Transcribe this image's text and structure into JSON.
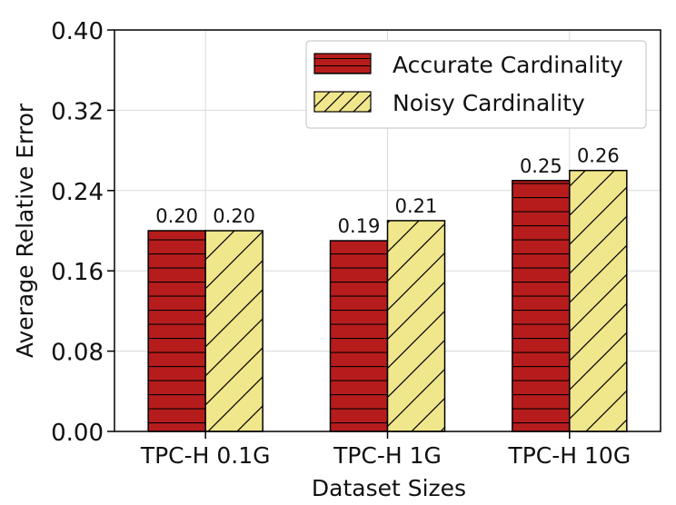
{
  "chart_data": {
    "type": "bar",
    "categories": [
      "TPC-H 0.1G",
      "TPC-H 1G",
      "TPC-H 10G"
    ],
    "series": [
      {
        "name": "Accurate Cardinality",
        "values": [
          0.2,
          0.19,
          0.25
        ],
        "labels": [
          "0.20",
          "0.19",
          "0.25"
        ],
        "color": "#b71c1c",
        "hatch": "horizontal"
      },
      {
        "name": "Noisy Cardinality",
        "values": [
          0.2,
          0.21,
          0.26
        ],
        "labels": [
          "0.20",
          "0.21",
          "0.26"
        ],
        "color": "#f0e68c",
        "hatch": "diagonal"
      }
    ],
    "xlabel": "Dataset Sizes",
    "ylabel": "Average Relative Error",
    "ylim": [
      0.0,
      0.4
    ],
    "yticks": [
      "0.00",
      "0.08",
      "0.16",
      "0.24",
      "0.32",
      "0.40"
    ],
    "grid": true,
    "legend_position": "top-right"
  }
}
